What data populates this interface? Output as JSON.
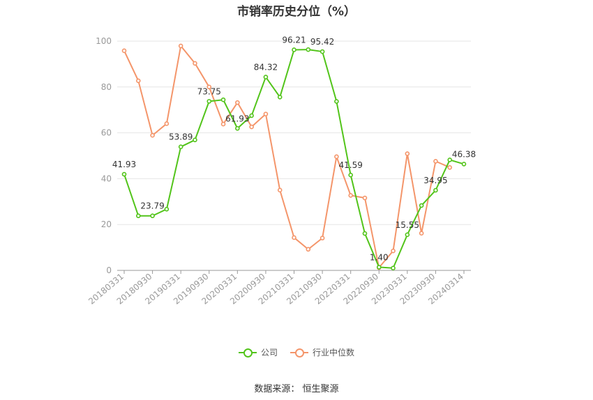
{
  "chart_data": {
    "type": "line",
    "title": "市销率历史分位（%）",
    "x": [
      "20180331",
      "20180630",
      "20180930",
      "20181231",
      "20190331",
      "20190630",
      "20190930",
      "20191231",
      "20200331",
      "20200630",
      "20200930",
      "20201231",
      "20210331",
      "20210630",
      "20210930",
      "20211231",
      "20220331",
      "20220630",
      "20220930",
      "20221231",
      "20230331",
      "20230630",
      "20230930",
      "20231231",
      "20240314"
    ],
    "xticklabels": [
      "20180331",
      "20180930",
      "20190331",
      "20190930",
      "20200331",
      "20200930",
      "20210331",
      "20210930",
      "20220331",
      "20220930",
      "20230331",
      "20230930",
      "20240314"
    ],
    "ylim": [
      0,
      100
    ],
    "yticks": [
      0,
      20,
      40,
      60,
      80,
      100
    ],
    "grid": true,
    "legend_position": "bottom",
    "series": [
      {
        "name": "公司",
        "color": "#52c41a",
        "values": [
          41.93,
          23.79,
          23.79,
          26.7,
          53.89,
          56.9,
          73.75,
          74.4,
          61.93,
          67.5,
          84.32,
          75.6,
          96.21,
          96.3,
          95.42,
          73.7,
          41.59,
          16.1,
          1.4,
          1.0,
          15.55,
          28.3,
          34.95,
          48.2,
          46.38
        ],
        "labels": {
          "0": "41.93",
          "2": "23.79",
          "4": "53.89",
          "6": "73.75",
          "8": "61.93",
          "10": "84.32",
          "12": "96.21",
          "14": "95.42",
          "16": "41.59",
          "18": "1.40",
          "20": "15.55",
          "22": "34.95",
          "24": "46.38"
        }
      },
      {
        "name": "行业中位数",
        "color": "#f4956a",
        "values": [
          95.8,
          82.7,
          58.9,
          64.0,
          97.9,
          90.3,
          80.0,
          63.8,
          73.2,
          62.6,
          68.2,
          35.0,
          14.3,
          9.2,
          14.1,
          49.6,
          32.7,
          31.6,
          1.2,
          8.5,
          50.9,
          16.2,
          47.6,
          44.9,
          null
        ]
      }
    ]
  },
  "legend": {
    "company": "公司",
    "industry": "行业中位数"
  },
  "source": "数据来源：  恒生聚源"
}
